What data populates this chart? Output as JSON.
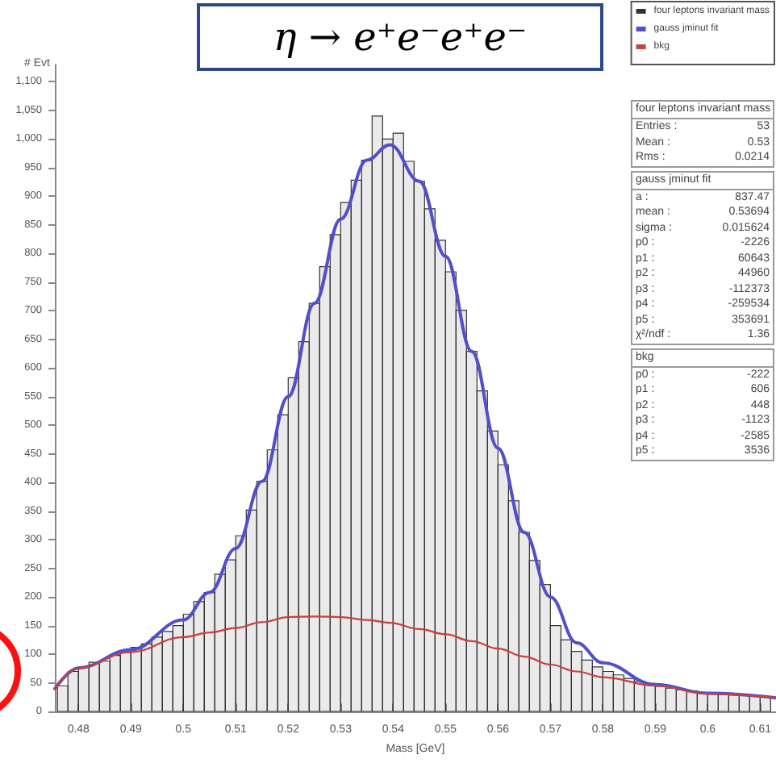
{
  "chart_data": {
    "type": "histogram",
    "title": "η → e⁺e⁻e⁺e⁻",
    "xlabel": "Mass [GeV]",
    "ylabel": "# Evt",
    "bins": [
      0.476,
      0.478,
      0.48,
      0.482,
      0.484,
      0.486,
      0.488,
      0.49,
      0.492,
      0.494,
      0.496,
      0.498,
      0.5,
      0.502,
      0.504,
      0.506,
      0.508,
      0.51,
      0.512,
      0.514,
      0.516,
      0.518,
      0.52,
      0.522,
      0.524,
      0.526,
      0.528,
      0.53,
      0.532,
      0.534,
      0.536,
      0.538,
      0.54,
      0.542,
      0.544,
      0.546,
      0.548,
      0.55,
      0.552,
      0.554,
      0.556,
      0.558,
      0.56,
      0.562,
      0.564,
      0.566,
      0.568,
      0.57,
      0.572,
      0.574,
      0.576,
      0.578,
      0.58,
      0.582,
      0.584,
      0.586,
      0.588,
      0.59,
      0.592,
      0.594,
      0.596,
      0.598,
      0.6,
      0.602,
      0.604,
      0.606,
      0.608,
      0.61,
      0.612
    ],
    "series": [
      {
        "name": "four leptons invariant mass",
        "color": "#333333",
        "values": [
          45,
          70,
          78,
          86,
          88,
          98,
          103,
          112,
          118,
          130,
          140,
          150,
          170,
          192,
          208,
          240,
          265,
          307,
          352,
          402,
          457,
          518,
          583,
          646,
          713,
          777,
          833,
          889,
          928,
          963,
          1040,
          1000,
          1010,
          961,
          926,
          878,
          823,
          768,
          701,
          629,
          560,
          490,
          431,
          368,
          313,
          264,
          222,
          150,
          125,
          105,
          90,
          78,
          70,
          64,
          58,
          53,
          49,
          44,
          41,
          38,
          36,
          33,
          31,
          30,
          29,
          28,
          27,
          26
        ]
      },
      {
        "name": "gauss jminut fit",
        "type": "line",
        "color": "#5050c8",
        "x": [
          0.4755,
          0.48,
          0.49,
          0.5,
          0.505,
          0.51,
          0.515,
          0.52,
          0.525,
          0.53,
          0.535,
          0.5394,
          0.545,
          0.55,
          0.555,
          0.56,
          0.565,
          0.57,
          0.575,
          0.58,
          0.59,
          0.6,
          0.613
        ],
        "values": [
          40,
          76,
          108,
          160,
          208,
          285,
          402,
          550,
          713,
          860,
          963,
          990,
          926,
          795,
          629,
          460,
          313,
          200,
          120,
          85,
          47,
          32,
          24
        ]
      },
      {
        "name": "bkg",
        "type": "line",
        "color": "#c84040",
        "x": [
          0.4755,
          0.48,
          0.49,
          0.5,
          0.505,
          0.51,
          0.515,
          0.52,
          0.525,
          0.53,
          0.535,
          0.5394,
          0.545,
          0.55,
          0.555,
          0.56,
          0.565,
          0.57,
          0.575,
          0.58,
          0.59,
          0.6,
          0.613
        ],
        "values": [
          40,
          76,
          104,
          130,
          138,
          146,
          156,
          165,
          166,
          165,
          160,
          155,
          144,
          135,
          123,
          110,
          96,
          82,
          70,
          60,
          45,
          31,
          24
        ]
      }
    ],
    "xlim": [
      0.4755,
      0.613
    ],
    "xticks": [
      0.48,
      0.49,
      0.5,
      0.51,
      0.52,
      0.53,
      0.54,
      0.55,
      0.56,
      0.57,
      0.58,
      0.59,
      0.6,
      0.61
    ],
    "ylim": [
      0,
      1130
    ],
    "yticks": [
      0,
      50,
      100,
      150,
      200,
      250,
      300,
      350,
      400,
      450,
      500,
      550,
      600,
      650,
      700,
      750,
      800,
      850,
      900,
      950,
      {
        "value": 1000,
        "label": "1,000"
      },
      {
        "value": 1050,
        "label": "1,050"
      },
      {
        "value": 1100,
        "label": "1,100"
      }
    ],
    "legend": "top right",
    "grid": false,
    "marker": "none",
    "annotations": [
      "four leptons invariant mass\nEntries : 53\nMean : 0.53\nRms : 0.0214",
      "gauss jminut fit\na : 837.47\nmean : 0.53694\nsigma : 0.015624\np0 : -2226\np1 : 60643\np2 : 44960\np3 : -112373\np4 : -259534\np5 : 353691\nχ²/ndf : 1.36",
      "bkg\np0 : -222\np1 : 606\np2 : 448\np3 : -1123\np4 : -2585\np5 : 3536"
    ]
  }
}
